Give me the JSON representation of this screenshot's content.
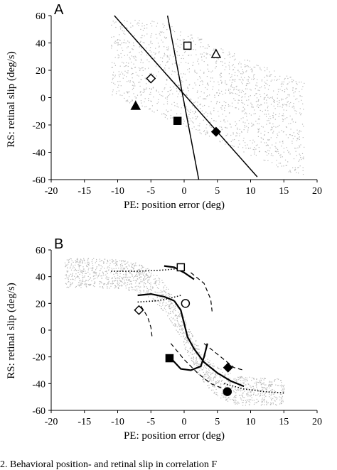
{
  "chart_data": [
    {
      "panel": "A",
      "type": "scatter",
      "xlabel": "PE: position error (deg)",
      "ylabel": "RS: retinal slip (deg/s)",
      "xlim": [
        -20,
        20
      ],
      "ylim": [
        -60,
        60
      ],
      "xticks": [
        -20,
        -15,
        -10,
        -5,
        0,
        5,
        10,
        15,
        20
      ],
      "yticks": [
        60,
        40,
        20,
        0,
        -20,
        -40,
        -60
      ],
      "grid": false,
      "lines": [
        {
          "x": [
            -10.5,
            11
          ],
          "y": [
            60,
            -58
          ]
        },
        {
          "x": [
            -2.5,
            2.2
          ],
          "y": [
            60,
            -60
          ]
        }
      ],
      "markers": [
        {
          "shape": "open-square",
          "x": 0.5,
          "y": 38
        },
        {
          "shape": "open-triangle",
          "x": 4.8,
          "y": 32
        },
        {
          "shape": "open-diamond",
          "x": -5,
          "y": 14
        },
        {
          "shape": "filled-triangle",
          "x": -7.3,
          "y": -6
        },
        {
          "shape": "filled-square",
          "x": -1,
          "y": -17
        },
        {
          "shape": "filled-diamond",
          "x": 4.8,
          "y": -25
        }
      ]
    },
    {
      "panel": "B",
      "type": "scatter",
      "xlabel": "PE: position error (deg)",
      "ylabel": "RS: retinal slip (deg/s)",
      "xlim": [
        -20,
        20
      ],
      "ylim": [
        -60,
        60
      ],
      "xticks": [
        -20,
        -15,
        -10,
        -5,
        0,
        5,
        10,
        15,
        20
      ],
      "yticks": [
        60,
        40,
        20,
        0,
        -20,
        -40,
        -60
      ],
      "grid": false,
      "markers": [
        {
          "shape": "open-square",
          "x": -0.5,
          "y": 47
        },
        {
          "shape": "open-circle",
          "x": 0.2,
          "y": 20
        },
        {
          "shape": "open-diamond",
          "x": -6.8,
          "y": 15
        },
        {
          "shape": "filled-square",
          "x": -2.2,
          "y": -21
        },
        {
          "shape": "filled-diamond",
          "x": 6.6,
          "y": -28
        },
        {
          "shape": "filled-circle",
          "x": 6.5,
          "y": -46
        }
      ],
      "curves": [
        {
          "style": "solid",
          "x": [
            -1.5,
            -0.5,
            0,
            0.5,
            1.5,
            3,
            5,
            7,
            9
          ],
          "y": [
            22,
            15,
            5,
            -5,
            -14,
            -24,
            -32,
            -38,
            -42
          ]
        },
        {
          "style": "solid",
          "x": [
            -2,
            -0.5,
            1,
            2.5,
            3,
            3.5
          ],
          "y": [
            -21,
            -29,
            -30,
            -27,
            -20,
            -10
          ]
        },
        {
          "style": "solid",
          "x": [
            -3,
            -1.5,
            0,
            1.5
          ],
          "y": [
            48,
            47,
            43,
            38
          ]
        },
        {
          "style": "solid",
          "x": [
            -7,
            -5,
            -3,
            -1.5
          ],
          "y": [
            26,
            27,
            25,
            22
          ]
        },
        {
          "style": "dotted",
          "x": [
            -11,
            -7,
            -3,
            -1
          ],
          "y": [
            44,
            44,
            45,
            46
          ]
        },
        {
          "style": "dotted",
          "x": [
            -7,
            -4,
            -2,
            -0.5
          ],
          "y": [
            21,
            22,
            24,
            26
          ]
        },
        {
          "style": "dotted",
          "x": [
            6,
            9,
            12,
            15
          ],
          "y": [
            -40,
            -44,
            -46,
            -47
          ]
        },
        {
          "style": "dashed",
          "x": [
            1,
            3,
            4,
            4.2
          ],
          "y": [
            43,
            35,
            23,
            14
          ]
        },
        {
          "style": "dashed",
          "x": [
            -6.5,
            -5.5,
            -5,
            -4.8
          ],
          "y": [
            18,
            10,
            2,
            -6
          ]
        },
        {
          "style": "dashed",
          "x": [
            -2,
            0,
            2,
            4,
            6
          ],
          "y": [
            -10,
            -22,
            -32,
            -40,
            -44
          ]
        },
        {
          "style": "dashed",
          "x": [
            3,
            4.5,
            6,
            7.5,
            9
          ],
          "y": [
            -10,
            -16,
            -22,
            -28,
            -30
          ]
        }
      ]
    }
  ],
  "caption": "2.   Behavioral   position-   and   retinal   slip   in   correlation   F"
}
